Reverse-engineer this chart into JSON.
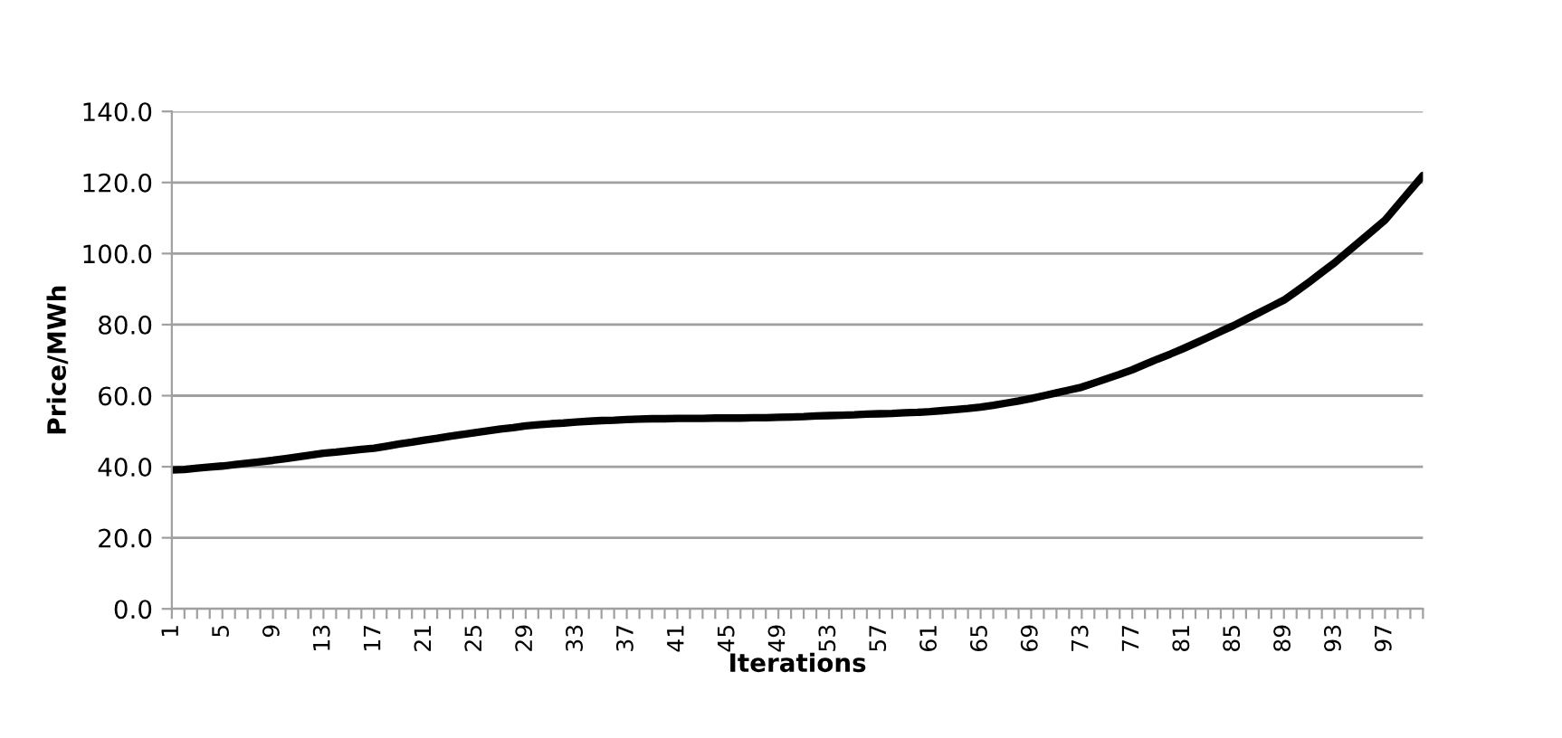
{
  "chart_data": {
    "type": "line",
    "xlabel": "Iterations",
    "ylabel": "Price/MWh",
    "categories": [
      "1",
      null,
      null,
      null,
      "5",
      null,
      null,
      null,
      "9",
      null,
      null,
      null,
      "13",
      null,
      null,
      null,
      "17",
      null,
      null,
      null,
      "21",
      null,
      null,
      null,
      "25",
      null,
      null,
      null,
      "29",
      null,
      null,
      null,
      "33",
      null,
      null,
      null,
      "37",
      null,
      null,
      null,
      "41",
      null,
      null,
      null,
      "45",
      null,
      null,
      null,
      "49",
      null,
      null,
      null,
      "53",
      null,
      null,
      null,
      "57",
      null,
      null,
      null,
      "61",
      null,
      null,
      null,
      "65",
      null,
      null,
      null,
      "69",
      null,
      null,
      null,
      "73",
      null,
      null,
      null,
      "77",
      null,
      null,
      null,
      "81",
      null,
      null,
      null,
      "85",
      null,
      null,
      null,
      "89",
      null,
      null,
      null,
      "93",
      null,
      null,
      null,
      "97",
      null,
      null,
      null
    ],
    "series": [
      {
        "color": "#000000",
        "values": [
          39.1,
          39.2,
          39.6,
          39.9,
          40.2,
          40.6,
          41.0,
          41.4,
          41.8,
          42.3,
          42.8,
          43.3,
          43.8,
          44.1,
          44.5,
          44.9,
          45.2,
          45.8,
          46.4,
          46.9,
          47.5,
          48.0,
          48.6,
          49.1,
          49.6,
          50.1,
          50.6,
          51.0,
          51.5,
          51.8,
          52.1,
          52.3,
          52.6,
          52.8,
          53.0,
          53.1,
          53.3,
          53.4,
          53.5,
          53.5,
          53.6,
          53.6,
          53.6,
          53.7,
          53.7,
          53.7,
          53.8,
          53.8,
          53.9,
          54.0,
          54.1,
          54.3,
          54.4,
          54.5,
          54.6,
          54.8,
          54.9,
          55.0,
          55.2,
          55.3,
          55.5,
          55.8,
          56.1,
          56.4,
          56.8,
          57.3,
          57.9,
          58.5,
          59.2,
          60.0,
          60.8,
          61.6,
          62.4,
          63.6,
          64.8,
          66.0,
          67.3,
          68.8,
          70.3,
          71.7,
          73.2,
          74.8,
          76.4,
          78.1,
          79.7,
          81.5,
          83.3,
          85.1,
          86.9,
          89.4,
          92.0,
          94.7,
          97.4,
          100.4,
          103.4,
          106.4,
          109.4,
          113.6,
          117.8,
          122.0
        ]
      }
    ],
    "ylim": [
      0,
      140
    ],
    "yticks": [
      {
        "value": 0,
        "label": "0.0"
      },
      {
        "value": 20,
        "label": "20.0"
      },
      {
        "value": 40,
        "label": "40.0"
      },
      {
        "value": 60,
        "label": "60.0"
      },
      {
        "value": 80,
        "label": "80.0"
      },
      {
        "value": 100,
        "label": "100.0"
      },
      {
        "value": 120,
        "label": "120.0"
      },
      {
        "value": 140,
        "label": "140.0"
      }
    ],
    "grid": "y",
    "marker": "none",
    "line_style": "solid"
  }
}
